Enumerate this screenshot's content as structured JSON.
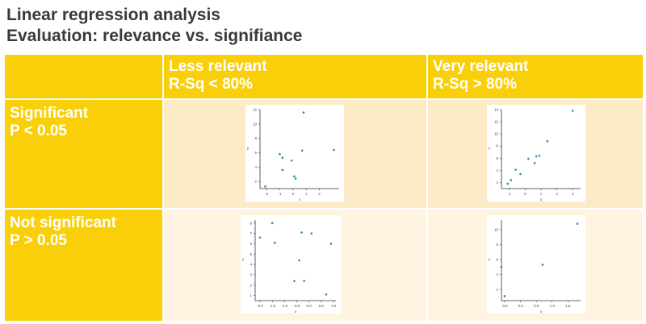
{
  "title": {
    "line1": "Linear regression analysis",
    "line2": "Evaluation: relevance vs. signifiance"
  },
  "columns": [
    {
      "line1": "",
      "line2": ""
    },
    {
      "line1": "Less relevant",
      "line2": "R-Sq < 80%"
    },
    {
      "line1": "Very relevant",
      "line2": "R-Sq > 80%"
    }
  ],
  "rows": [
    {
      "line1": "Significant",
      "line2": "P < 0.05"
    },
    {
      "line1": "Not significant",
      "line2": "P > 0.05"
    }
  ],
  "colors": {
    "header_yellow": "#f9cf0a",
    "cell_light_1": "#fdebc8",
    "cell_light_2": "#fff4e1",
    "point_teal": "#2a8f9e",
    "title_text": "#3a3a3a"
  },
  "chart_data": [
    {
      "type": "scatter",
      "position": "significant-less-relevant",
      "xlim": [
        -2.5,
        3.5
      ],
      "ylim": [
        1,
        12
      ],
      "xticks": [
        "-2",
        "-1",
        "0",
        "1",
        "2"
      ],
      "yticks": [
        "2",
        "4",
        "6",
        "8",
        "10",
        "12"
      ],
      "xlabel": "x",
      "ylabel": "y",
      "points": [
        [
          -2.1,
          1.3
        ],
        [
          -1.0,
          5.8
        ],
        [
          -0.8,
          5.3
        ],
        [
          -0.8,
          3.6
        ],
        [
          -0.1,
          4.9
        ],
        [
          0.1,
          2.7
        ],
        [
          0.2,
          2.4
        ],
        [
          0.7,
          6.3
        ],
        [
          0.8,
          11.6
        ],
        [
          3.1,
          6.4
        ]
      ]
    },
    {
      "type": "scatter",
      "position": "significant-very-relevant",
      "xlim": [
        -1.5,
        3.5
      ],
      "ylim": [
        1,
        14
      ],
      "xticks": [
        "-1",
        "0",
        "1",
        "2",
        "3"
      ],
      "yticks": [
        "2",
        "4",
        "6",
        "8",
        "10",
        "12",
        "14"
      ],
      "xlabel": "x",
      "ylabel": "y",
      "points": [
        [
          -1.1,
          1.8
        ],
        [
          -0.9,
          2.4
        ],
        [
          -0.6,
          4.1
        ],
        [
          -0.3,
          3.4
        ],
        [
          0.2,
          5.9
        ],
        [
          0.6,
          5.2
        ],
        [
          0.7,
          6.3
        ],
        [
          0.9,
          6.4
        ],
        [
          1.4,
          8.8
        ],
        [
          3.0,
          13.8
        ]
      ]
    },
    {
      "type": "scatter",
      "position": "not-significant-less-relevant",
      "xlim": [
        -2.2,
        1.1
      ],
      "ylim": [
        0.5,
        8.3
      ],
      "xticks": [
        "-2.0",
        "-1.5",
        "-1.0",
        "-0.5",
        "0.0",
        "0.5",
        "1.0"
      ],
      "yticks": [
        "1",
        "2",
        "3",
        "4",
        "5",
        "6",
        "7",
        "8"
      ],
      "xlabel": "x",
      "ylabel": "y",
      "points": [
        [
          -2.0,
          6.6
        ],
        [
          -1.5,
          8.0
        ],
        [
          -1.4,
          6.1
        ],
        [
          -0.6,
          2.4
        ],
        [
          -0.4,
          4.4
        ],
        [
          -0.3,
          7.1
        ],
        [
          -0.2,
          2.4
        ],
        [
          0.1,
          7.0
        ],
        [
          0.7,
          1.1
        ],
        [
          0.9,
          6.0
        ]
      ]
    },
    {
      "type": "scatter",
      "position": "not-significant-very-relevant",
      "xlim": [
        -0.6,
        1.9
      ],
      "ylim": [
        0.5,
        11.3
      ],
      "xticks": [
        "-0.5",
        "0.0",
        "0.5",
        "1.0",
        "1.5"
      ],
      "yticks": [
        "2",
        "4",
        "6",
        "8",
        "10"
      ],
      "xlabel": "x",
      "ylabel": "y",
      "points": [
        [
          -0.6,
          5.0
        ],
        [
          -0.5,
          1.1
        ],
        [
          0.7,
          5.3
        ],
        [
          1.8,
          10.8
        ]
      ]
    }
  ]
}
